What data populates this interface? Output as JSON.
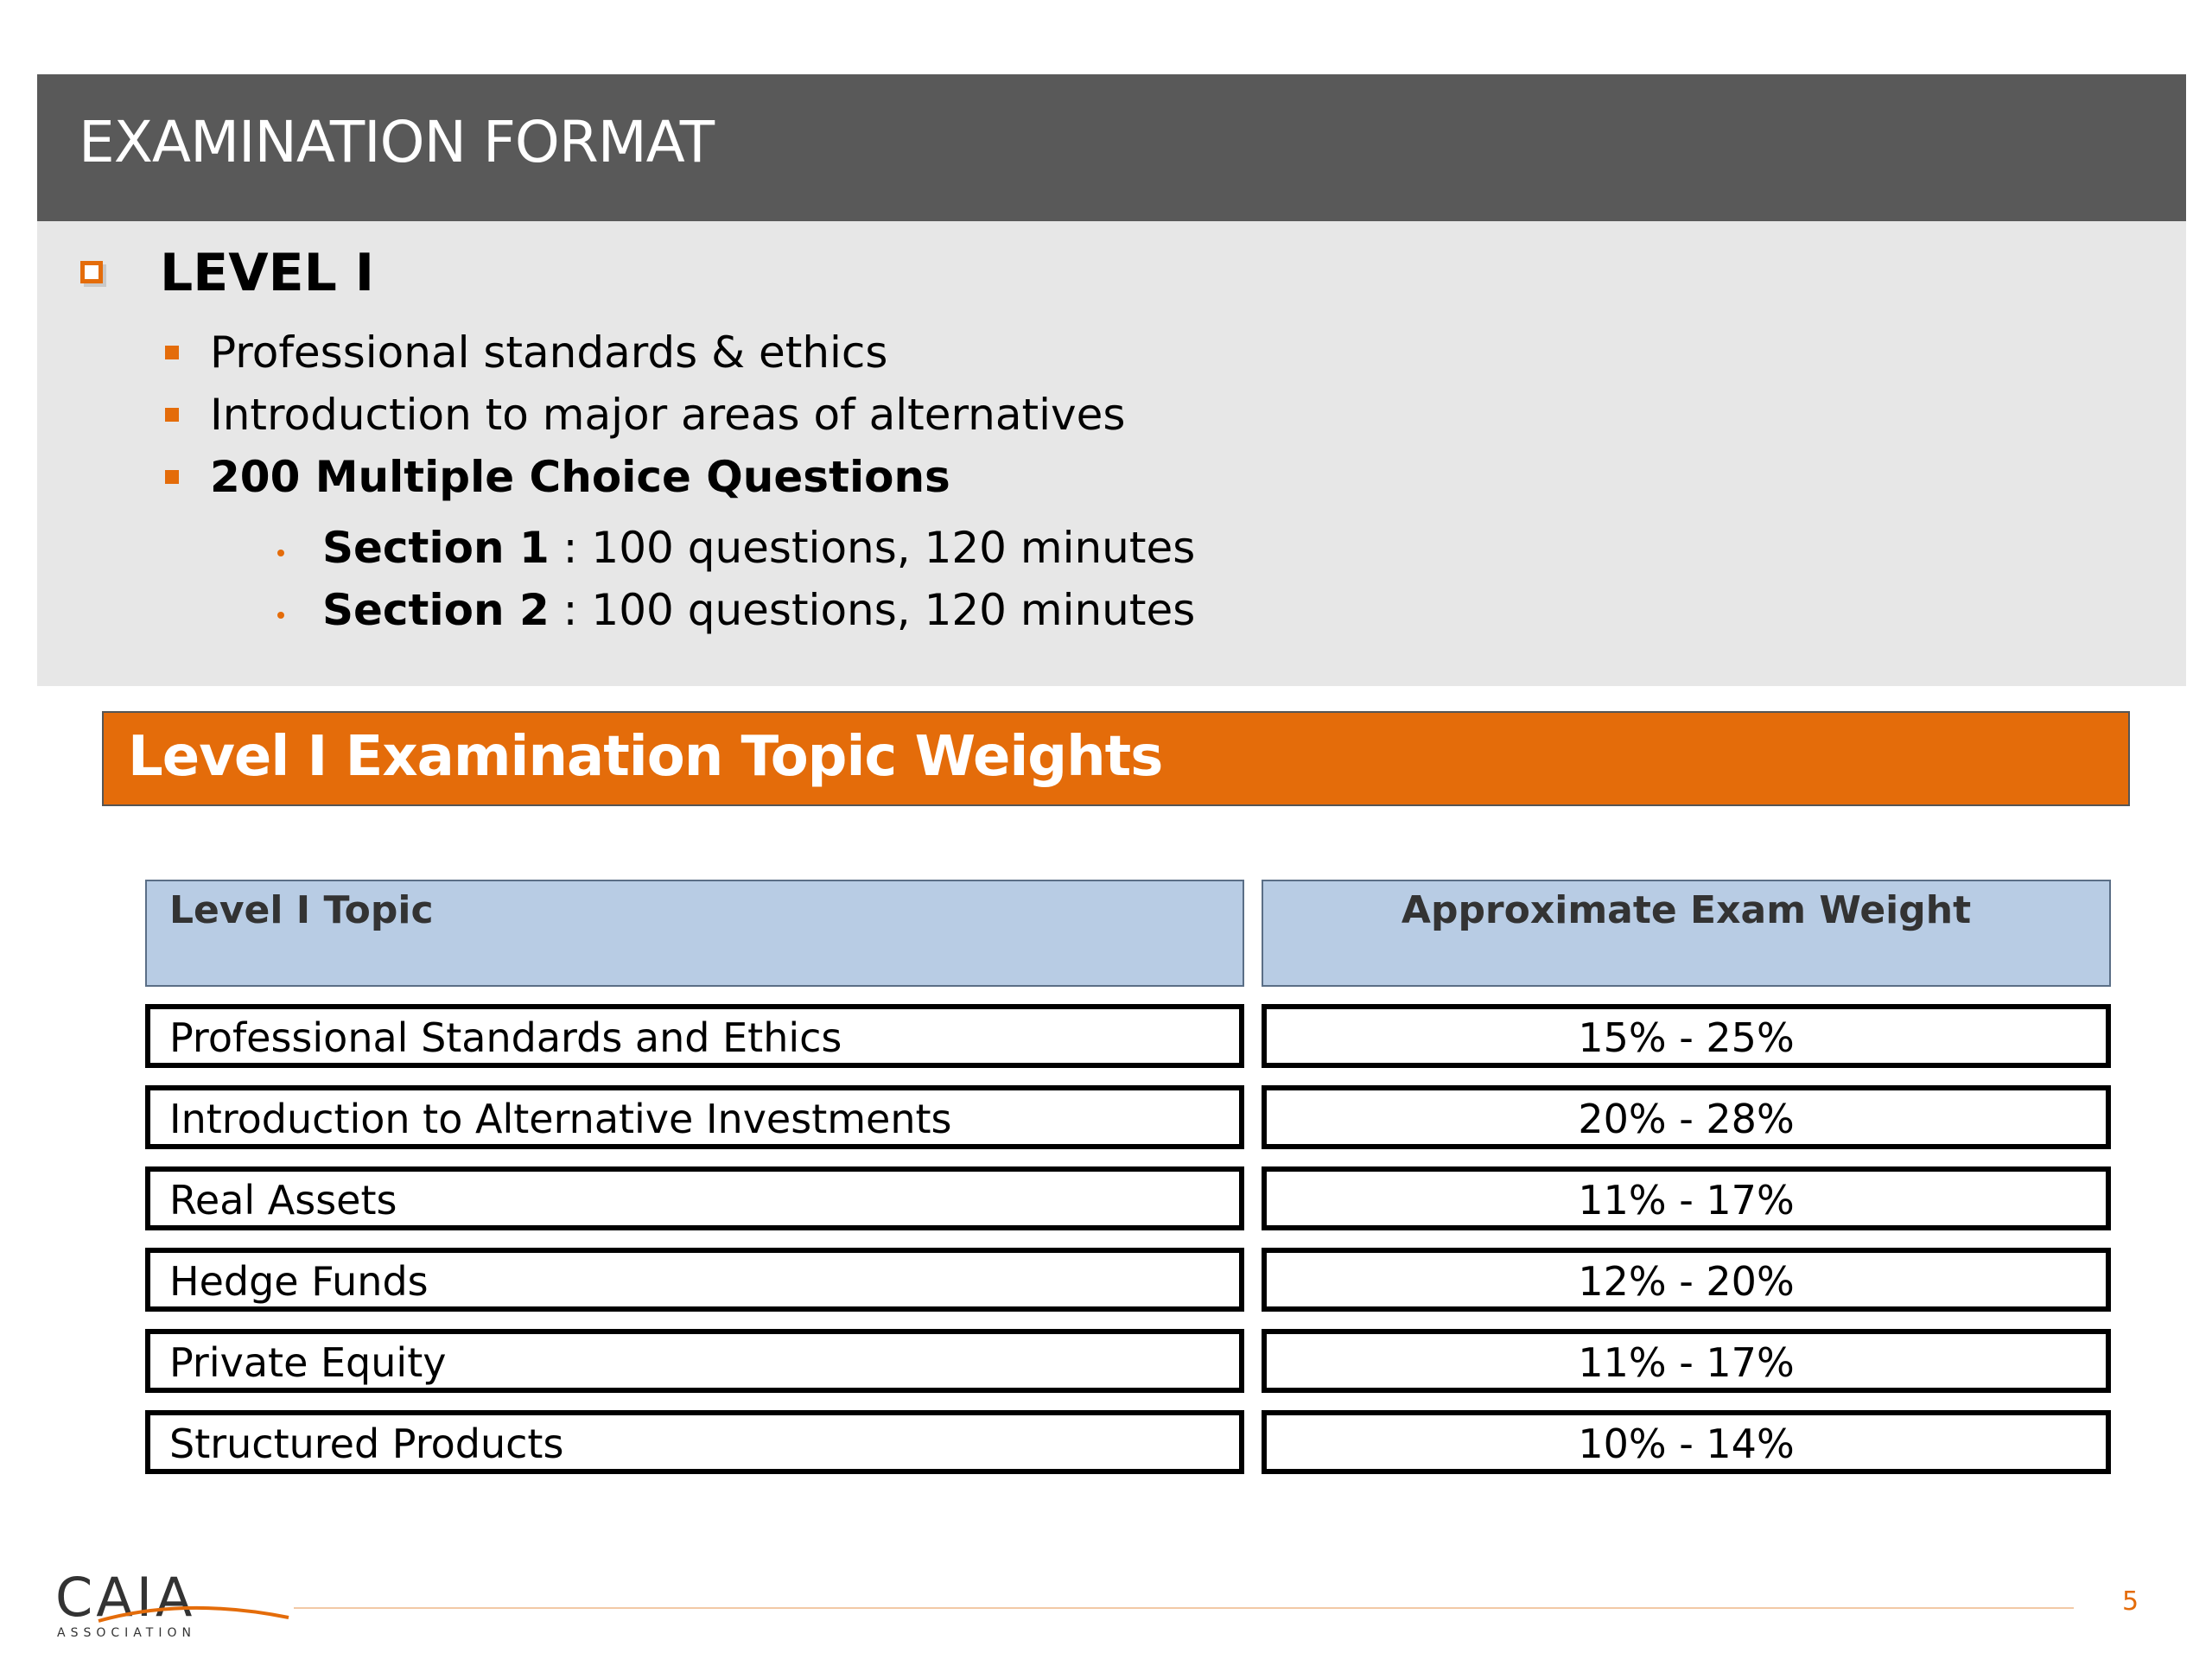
{
  "header": {
    "title": "EXAMINATION FORMAT"
  },
  "level": {
    "heading": "LEVEL I",
    "bullets": [
      "Professional standards & ethics",
      "Introduction to major areas of alternatives",
      "200 Multiple Choice Questions"
    ],
    "sections": [
      {
        "label": "Section 1",
        "detail": " : 100 questions, 120 minutes"
      },
      {
        "label": "Section 2",
        "detail": " : 100 questions, 120 minutes"
      }
    ]
  },
  "banner": {
    "title": "Level I Examination Topic Weights"
  },
  "table": {
    "headers": [
      "Level I Topic",
      "Approximate Exam Weight"
    ],
    "rows": [
      [
        "Professional Standards and Ethics",
        "15% - 25%"
      ],
      [
        "Introduction to Alternative Investments",
        "20% - 28%"
      ],
      [
        "Real Assets",
        "11% - 17%"
      ],
      [
        "Hedge Funds",
        "12% - 20%"
      ],
      [
        "Private Equity",
        "11% - 17%"
      ],
      [
        "Structured Products",
        "10% - 14%"
      ]
    ]
  },
  "footer": {
    "logo_text": "CAIA",
    "logo_subtext": "ASSOCIATION",
    "page_number": "5"
  },
  "colors": {
    "header_bg": "#595959",
    "panel_bg": "#e7e7e7",
    "accent_orange": "#e46c0a",
    "table_header_bg": "#b8cce4"
  }
}
